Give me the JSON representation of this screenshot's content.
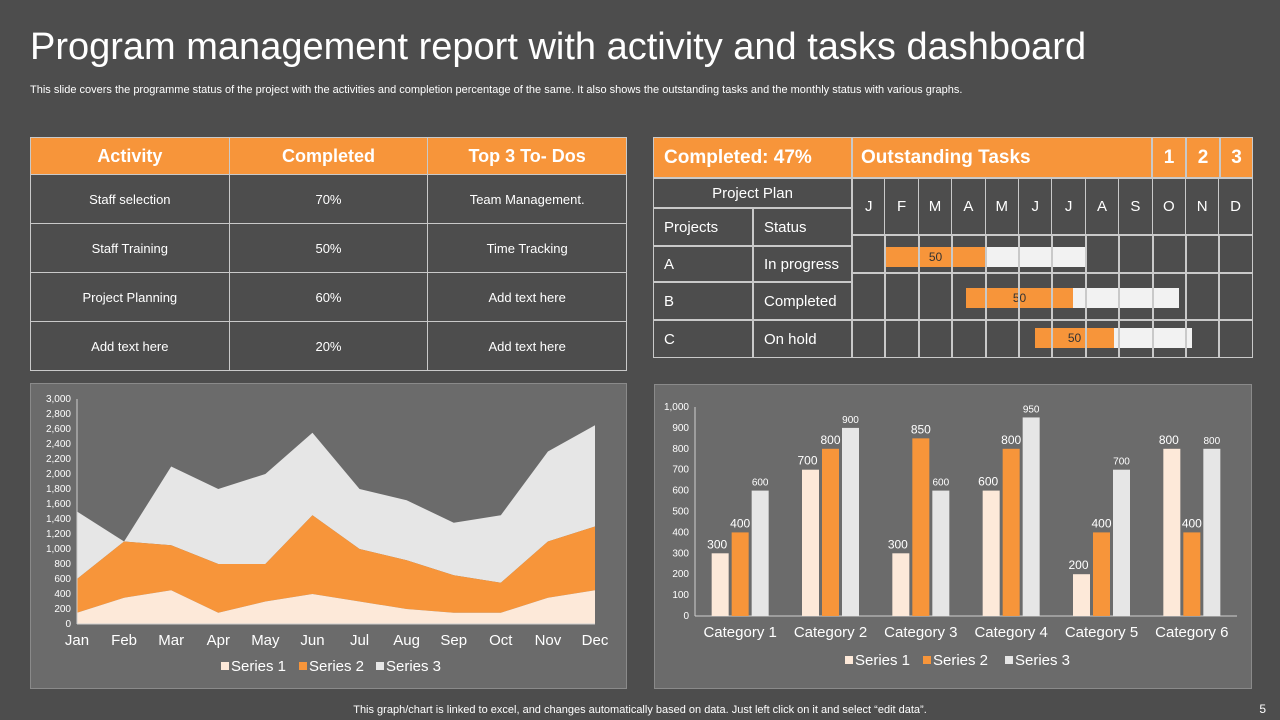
{
  "title": "Program management report with activity and tasks dashboard",
  "subtitle": "This slide covers the programme status of the project with the activities and completion percentage of the same. It also shows the outstanding tasks and the monthly status with various graphs.",
  "activity_table": {
    "headers": [
      "Activity",
      "Completed",
      "Top 3 To- Dos"
    ],
    "rows": [
      [
        "Staff selection",
        "70%",
        "Team Management."
      ],
      [
        "Staff Training",
        "50%",
        "Time Tracking"
      ],
      [
        "Project Planning",
        "60%",
        "Add text here"
      ],
      [
        "Add text here",
        "20%",
        "Add text here"
      ]
    ]
  },
  "gantt": {
    "completed_label": "Completed: 47%",
    "outstanding_label": "Outstanding Tasks",
    "numbers": [
      "1",
      "2",
      "3"
    ],
    "project_plan": "Project Plan",
    "col_projects": "Projects",
    "col_status": "Status",
    "months": [
      "J",
      "F",
      "M",
      "A",
      "M",
      "J",
      "J",
      "A",
      "S",
      "O",
      "N",
      "D"
    ],
    "rows": [
      {
        "project": "A",
        "status": "In progress",
        "done": "50"
      },
      {
        "project": "B",
        "status": "Completed",
        "done": "50"
      },
      {
        "project": "C",
        "status": "On hold",
        "done": "50"
      }
    ]
  },
  "colors": {
    "orange": "#f7953a",
    "series1": "#fde9d9",
    "series2": "#f7953a",
    "series3": "#e6e6e6",
    "background": "#4d4d4d"
  },
  "chart_data": [
    {
      "type": "area",
      "stacked": true,
      "categories": [
        "Jan",
        "Feb",
        "Mar",
        "Apr",
        "May",
        "Jun",
        "Jul",
        "Aug",
        "Sep",
        "Oct",
        "Nov",
        "Dec"
      ],
      "series": [
        {
          "name": "Series 1",
          "values": [
            150,
            350,
            450,
            150,
            300,
            400,
            300,
            200,
            150,
            150,
            350,
            450
          ]
        },
        {
          "name": "Series 2",
          "values": [
            450,
            750,
            600,
            650,
            500,
            1050,
            700,
            650,
            500,
            400,
            750,
            850
          ]
        },
        {
          "name": "Series 3",
          "values": [
            900,
            0,
            1050,
            1000,
            1200,
            1100,
            800,
            800,
            700,
            900,
            1200,
            1350
          ]
        }
      ],
      "yticks": [
        "0",
        "200",
        "400",
        "600",
        "800",
        "1,000",
        "1,200",
        "1,400",
        "1,600",
        "1,800",
        "2,000",
        "2,200",
        "2,400",
        "2,600",
        "2,800",
        "3,000"
      ],
      "ylim": [
        0,
        3000
      ],
      "legend": "bottom"
    },
    {
      "type": "bar",
      "categories": [
        "Category 1",
        "Category 2",
        "Category 3",
        "Category 4",
        "Category 5",
        "Category 6"
      ],
      "series": [
        {
          "name": "Series 1",
          "values": [
            300,
            700,
            300,
            600,
            200,
            800
          ]
        },
        {
          "name": "Series 2",
          "values": [
            400,
            800,
            850,
            800,
            400,
            400
          ]
        },
        {
          "name": "Series 3",
          "values": [
            600,
            900,
            600,
            950,
            700,
            800
          ]
        }
      ],
      "yticks": [
        "0",
        "100",
        "200",
        "300",
        "400",
        "500",
        "600",
        "700",
        "800",
        "900",
        "1,000"
      ],
      "ylim": [
        0,
        1000
      ],
      "legend": "bottom"
    }
  ],
  "footer": "This graph/chart is linked to excel, and changes automatically based on data. Just left click on it and select “edit data”.",
  "page_number": "5"
}
